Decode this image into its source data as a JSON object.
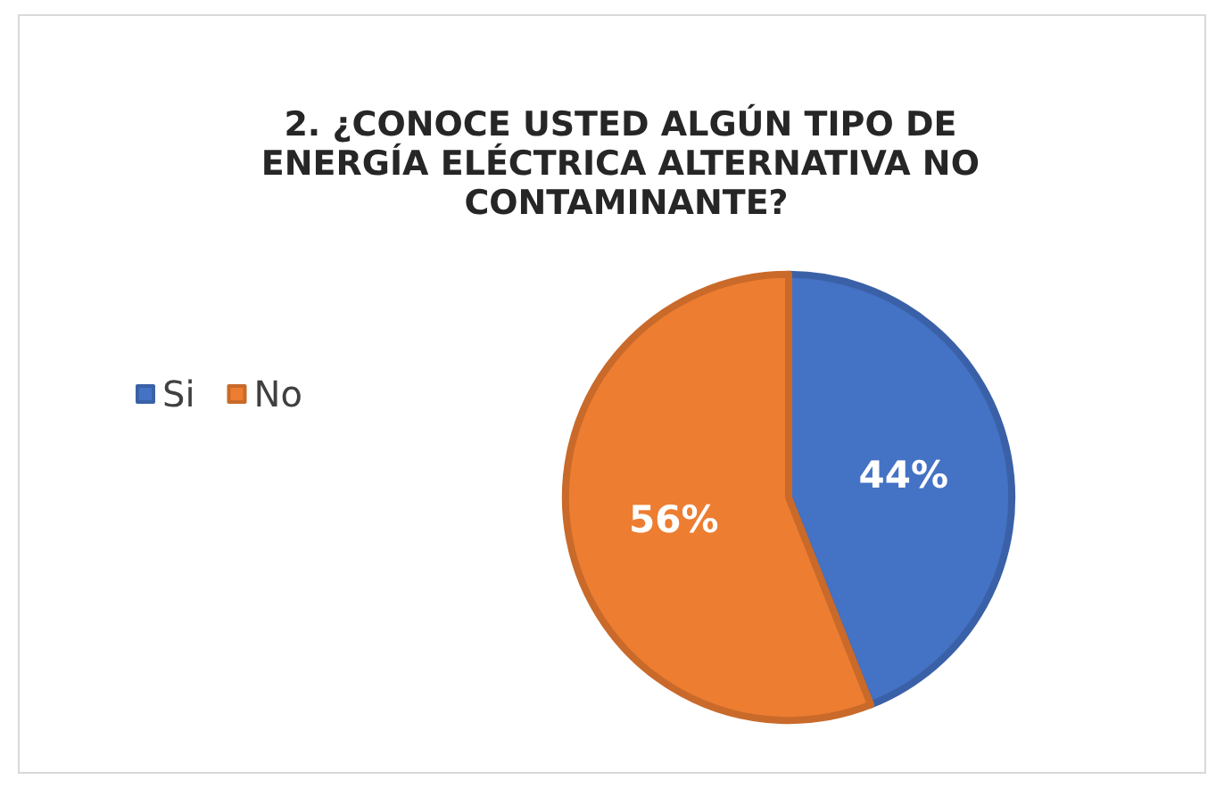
{
  "chart_data": {
    "type": "pie",
    "title": "2. ¿CONOCE USTED ALGÚN TIPO DE ENERGÍA ELÉCTRICA ALTERNATIVA NO CONTAMINANTE?",
    "categories": [
      "Si",
      "No"
    ],
    "values": [
      44,
      56
    ],
    "colors": [
      "#4472c4",
      "#ed7d31"
    ],
    "value_labels": [
      "44%",
      "56%"
    ],
    "legend": "left"
  }
}
